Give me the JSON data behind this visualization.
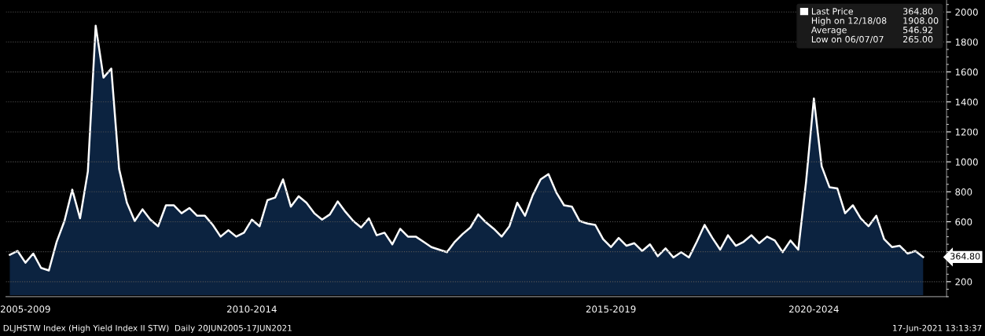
{
  "chart_data": {
    "type": "area",
    "categories": [
      null,
      null,
      "2005-2009",
      null,
      null,
      null,
      null,
      null,
      null,
      null,
      null,
      null,
      null,
      null,
      null,
      null,
      null,
      null,
      null,
      null,
      null,
      null,
      null,
      null,
      null,
      null,
      null,
      null,
      null,
      null,
      null,
      "2010-2014",
      null,
      null,
      null,
      null,
      null,
      null,
      null,
      null,
      null,
      null,
      null,
      null,
      null,
      null,
      null,
      null,
      null,
      null,
      null,
      null,
      null,
      null,
      null,
      null,
      null,
      null,
      null,
      null,
      null,
      null,
      null,
      null,
      null,
      null,
      null,
      null,
      null,
      null,
      null,
      null,
      null,
      null,
      null,
      null,
      null,
      "2015-2019",
      null,
      null,
      null,
      null,
      null,
      null,
      null,
      null,
      null,
      null,
      null,
      null,
      null,
      null,
      null,
      null,
      null,
      null,
      null,
      null,
      null,
      null,
      null,
      null,
      null,
      "2020-2024",
      null,
      null,
      null,
      null,
      null,
      null,
      null,
      null,
      null,
      null,
      null,
      null,
      null,
      null
    ],
    "series": [
      {
        "name": "Last Price",
        "color": "#0c2340",
        "values": [
          379,
          405,
          327,
          388,
          292,
          275,
          466,
          605,
          814,
          623,
          936,
          1909,
          1562,
          1622,
          953,
          727,
          605,
          683,
          614,
          570,
          710,
          710,
          657,
          692,
          640,
          640,
          579,
          501,
          544,
          501,
          527,
          614,
          570,
          744,
          762,
          883,
          701,
          770,
          727,
          657,
          614,
          649,
          736,
          666,
          605,
          562,
          623,
          510,
          527,
          449,
          553,
          501,
          501,
          466,
          431,
          414,
          397,
          466,
          518,
          562,
          649,
          596,
          553,
          501,
          570,
          727,
          640,
          779,
          883,
          918,
          796,
          710,
          701,
          605,
          588,
          579,
          484,
          431,
          492,
          440,
          457,
          405,
          449,
          370,
          423,
          362,
          397,
          362,
          466,
          579,
          492,
          414,
          510,
          440,
          466,
          510,
          457,
          501,
          475,
          397,
          475,
          414,
          866,
          1423,
          970,
          831,
          823,
          657,
          710,
          623,
          570,
          640,
          484,
          431,
          440,
          388,
          405,
          364.8
        ]
      }
    ],
    "ylim": [
      110,
      2080
    ],
    "yticks": [
      200,
      {
        "value": 400,
        "label": null
      },
      600,
      800,
      1000,
      1200,
      1400,
      1600,
      1800,
      2000
    ],
    "grid": "y",
    "legend": "top right",
    "annotations": [
      "364.80",
      "High on 12/18/08",
      "1908.00",
      "Average",
      "546.92",
      "Low on 06/07/07",
      "265.00",
      "364.80",
      "DLJHSTW Index (High Yield Index II STW)  Daily 20JUN2005-17JUN2021",
      "17-Jun-2021 13:13:37"
    ]
  }
}
